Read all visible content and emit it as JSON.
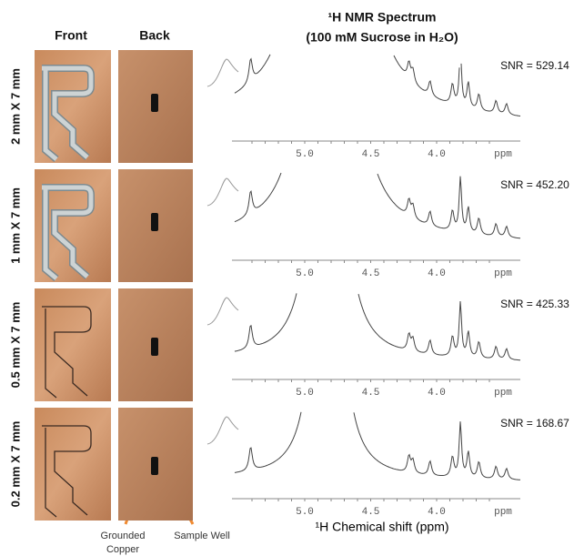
{
  "header": {
    "front": "Front",
    "back": "Back",
    "title_line1": "¹H NMR Spectrum",
    "title_line2": "(100 mM Sucrose in H₂O)"
  },
  "rows": [
    {
      "label": "2 mm X 7 mm",
      "snr": "SNR = 529.14"
    },
    {
      "label": "1 mm X 7 mm",
      "snr": "SNR = 452.20"
    },
    {
      "label": "0.5 mm X 7 mm",
      "snr": "SNR = 425.33"
    },
    {
      "label": "0.2 mm X 7 mm",
      "snr": "SNR = 168.67"
    }
  ],
  "axis": {
    "ticks": [
      "5.0",
      "4.5",
      "4.0"
    ],
    "unit": "ppm",
    "label": "¹H Chemical shift (ppm)"
  },
  "annotations": {
    "grounded": [
      "Grounded",
      "Copper"
    ],
    "well": "Sample Well"
  }
}
